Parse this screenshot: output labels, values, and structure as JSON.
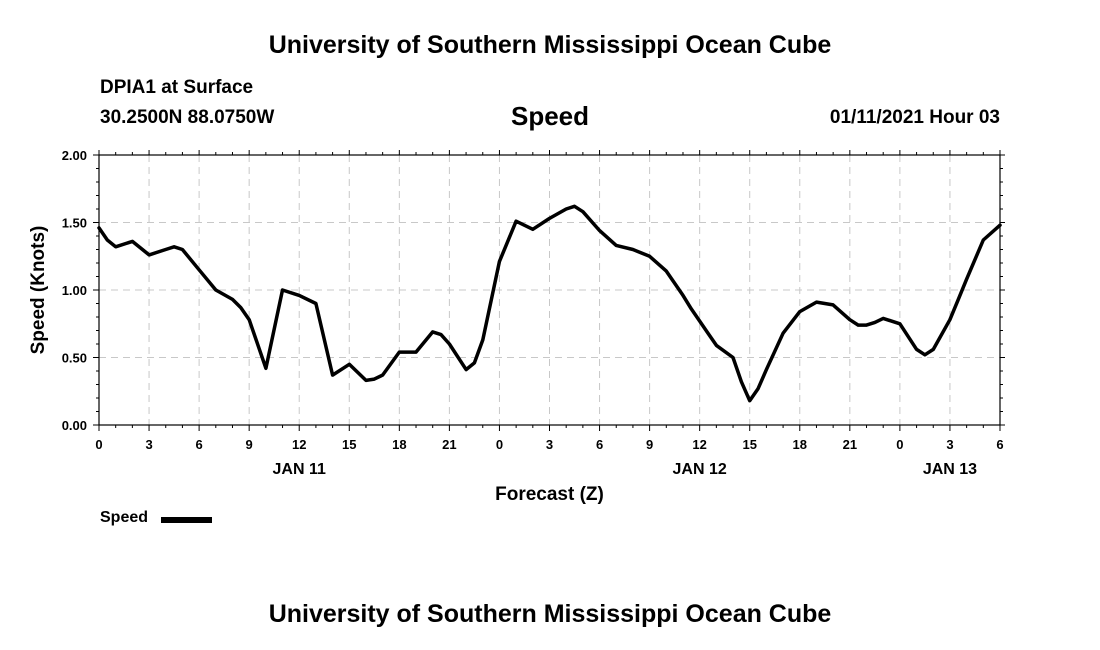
{
  "header": {
    "title": "University of Southern Mississippi Ocean Cube",
    "station": "DPIA1 at Surface",
    "coords": "30.2500N 88.0750W",
    "chart_title": "Speed",
    "date": "01/11/2021 Hour 03"
  },
  "footer": {
    "title": "University of Southern Mississippi Ocean Cube"
  },
  "legend": {
    "label": "Speed",
    "color": "#000000"
  },
  "chart_data": {
    "type": "line",
    "title": "Speed",
    "xlabel": "Forecast (Z)",
    "ylabel": "Speed (Knots)",
    "ylim": [
      0,
      2
    ],
    "xlim": [
      0,
      54
    ],
    "grid": true,
    "legend_position": "bottom-left",
    "x_ticks": [
      0,
      3,
      6,
      9,
      12,
      15,
      18,
      21,
      24,
      27,
      30,
      33,
      36,
      39,
      42,
      45,
      48,
      51,
      54
    ],
    "x_tick_labels": [
      "0",
      "3",
      "6",
      "9",
      "12",
      "15",
      "18",
      "21",
      "0",
      "3",
      "6",
      "9",
      "12",
      "15",
      "18",
      "21",
      "0",
      "3",
      "6"
    ],
    "y_ticks": [
      0,
      0.5,
      1,
      1.5,
      2
    ],
    "y_tick_labels": [
      "0.00",
      "0.50",
      "1.00",
      "1.50",
      "2.00"
    ],
    "date_labels": [
      {
        "x": 12,
        "label": "JAN 11"
      },
      {
        "x": 36,
        "label": "JAN 12"
      },
      {
        "x": 51,
        "label": "JAN 13"
      }
    ],
    "series": [
      {
        "name": "Speed",
        "color": "#000000",
        "x": [
          0,
          0.5,
          1,
          2,
          3,
          4,
          4.5,
          5,
          6,
          7,
          8,
          8.5,
          9,
          10,
          11,
          12,
          13,
          14,
          15,
          16,
          16.5,
          17,
          18,
          19,
          20,
          20.5,
          21,
          22,
          22.5,
          23,
          24,
          25,
          26,
          27,
          28,
          28.5,
          29,
          30,
          31,
          32,
          33,
          34,
          35,
          35.5,
          36,
          36.5,
          37,
          38,
          38.5,
          39,
          39.5,
          40,
          41,
          42,
          43,
          44,
          45,
          45.5,
          46,
          46.5,
          47,
          48,
          49,
          49.5,
          50,
          51,
          51.5,
          52,
          53,
          54
        ],
        "values": [
          1.46,
          1.37,
          1.32,
          1.36,
          1.26,
          1.3,
          1.32,
          1.3,
          1.15,
          1.0,
          0.93,
          0.87,
          0.78,
          0.42,
          1.0,
          0.96,
          0.9,
          0.37,
          0.45,
          0.33,
          0.34,
          0.37,
          0.54,
          0.54,
          0.69,
          0.67,
          0.6,
          0.41,
          0.46,
          0.63,
          1.21,
          1.51,
          1.45,
          1.53,
          1.6,
          1.62,
          1.58,
          1.44,
          1.33,
          1.3,
          1.25,
          1.14,
          0.96,
          0.86,
          0.77,
          0.68,
          0.59,
          0.5,
          0.32,
          0.18,
          0.27,
          0.41,
          0.68,
          0.84,
          0.91,
          0.89,
          0.78,
          0.74,
          0.74,
          0.76,
          0.79,
          0.75,
          0.56,
          0.52,
          0.56,
          0.78,
          0.93,
          1.08,
          1.37,
          1.48
        ]
      }
    ]
  }
}
